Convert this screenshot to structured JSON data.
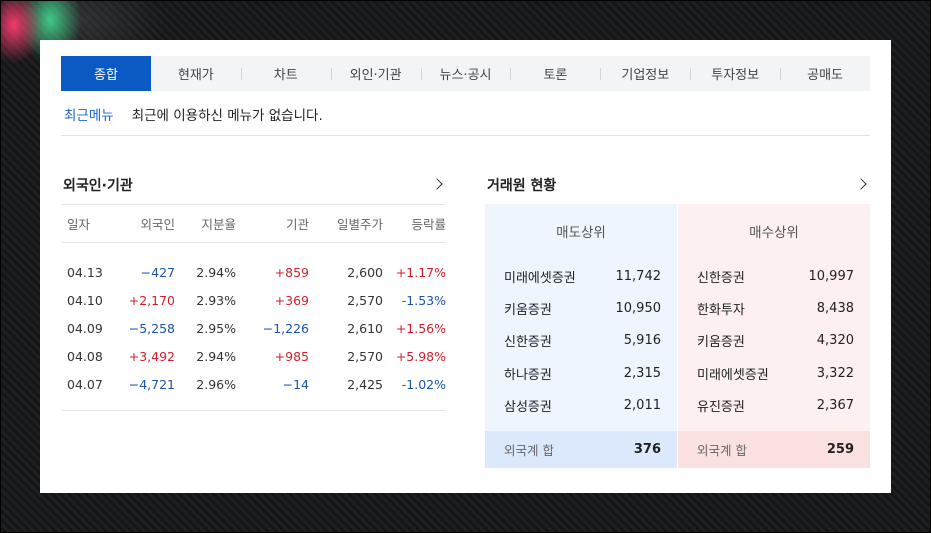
{
  "tabs": [
    {
      "label": "종합",
      "active": true
    },
    {
      "label": "현재가"
    },
    {
      "label": "차트"
    },
    {
      "label": "외인·기관"
    },
    {
      "label": "뉴스·공시"
    },
    {
      "label": "토론"
    },
    {
      "label": "기업정보"
    },
    {
      "label": "투자정보"
    },
    {
      "label": "공매도"
    }
  ],
  "recent": {
    "label": "최근메뉴",
    "text": "최근에 이용하신 메뉴가 없습니다."
  },
  "foreign_institution": {
    "title": "외국인·기관",
    "headers": [
      "일자",
      "외국인",
      "지분율",
      "기관",
      "일별주가",
      "등락률"
    ],
    "rows": [
      {
        "date": "04.13",
        "foreign": "−427",
        "share": "2.94%",
        "inst": "+859",
        "price": "2,600",
        "change": "+1.17%"
      },
      {
        "date": "04.10",
        "foreign": "+2,170",
        "share": "2.93%",
        "inst": "+369",
        "price": "2,570",
        "change": "-1.53%"
      },
      {
        "date": "04.09",
        "foreign": "−5,258",
        "share": "2.95%",
        "inst": "−1,226",
        "price": "2,610",
        "change": "+1.56%"
      },
      {
        "date": "04.08",
        "foreign": "+3,492",
        "share": "2.94%",
        "inst": "+985",
        "price": "2,570",
        "change": "+5.98%"
      },
      {
        "date": "04.07",
        "foreign": "−4,721",
        "share": "2.96%",
        "inst": "−14",
        "price": "2,425",
        "change": "-1.02%"
      }
    ]
  },
  "broker": {
    "title": "거래원 현황",
    "sell": {
      "header": "매도상위",
      "items": [
        {
          "name": "미래에셋증권",
          "value": "11,742"
        },
        {
          "name": "키움증권",
          "value": "10,950"
        },
        {
          "name": "신한증권",
          "value": "5,916"
        },
        {
          "name": "하나증권",
          "value": "2,315"
        },
        {
          "name": "삼성증권",
          "value": "2,011"
        }
      ],
      "foot_label": "외국계 합",
      "foot_value": "376"
    },
    "buy": {
      "header": "매수상위",
      "items": [
        {
          "name": "신한증권",
          "value": "10,997"
        },
        {
          "name": "한화투자",
          "value": "8,438"
        },
        {
          "name": "키움증권",
          "value": "4,320"
        },
        {
          "name": "미래에셋증권",
          "value": "3,322"
        },
        {
          "name": "유진증권",
          "value": "2,367"
        }
      ],
      "foot_label": "외국계 합",
      "foot_value": "259"
    }
  },
  "colors": {
    "accent": "#0b59c2",
    "negative": "#1a55a8",
    "positive": "#d01f2c"
  },
  "icons": {
    "more": "chevron-right-icon"
  }
}
